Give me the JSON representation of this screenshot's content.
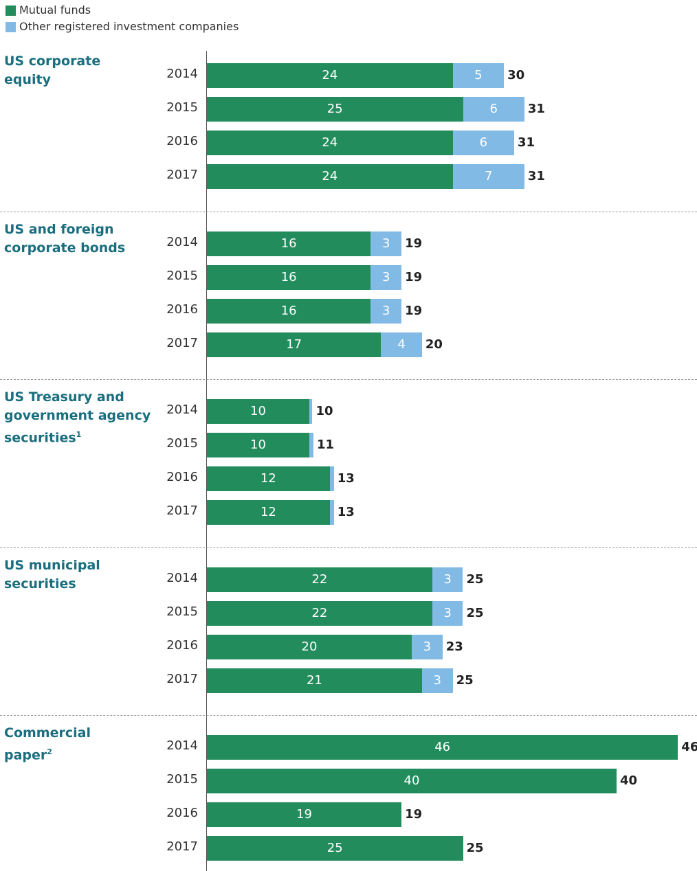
{
  "chart_data": {
    "type": "bar",
    "series": [
      {
        "name": "Mutual funds",
        "color": "#238c5c"
      },
      {
        "name": "Other registered investment companies",
        "color": "#82bae6"
      }
    ],
    "groups": [
      {
        "name": [
          "US corporate",
          "equity"
        ],
        "categories": [
          "2014",
          "2015",
          "2016",
          "2017"
        ],
        "values": [
          [
            24,
            25,
            24,
            24
          ],
          [
            5,
            6,
            6,
            7
          ]
        ],
        "totals": [
          30,
          31,
          31,
          31
        ]
      },
      {
        "name": [
          "US and foreign",
          "corporate bonds"
        ],
        "categories": [
          "2014",
          "2015",
          "2016",
          "2017"
        ],
        "values": [
          [
            16,
            16,
            16,
            17
          ],
          [
            3,
            3,
            3,
            4
          ]
        ],
        "totals": [
          19,
          19,
          19,
          20
        ]
      },
      {
        "name": [
          "US Treasury and",
          "government agency",
          "securities"
        ],
        "footnote": "1",
        "categories": [
          "2014",
          "2015",
          "2016",
          "2017"
        ],
        "values": [
          [
            10,
            10,
            12,
            12
          ],
          [
            0.3,
            0.4,
            0.4,
            0.4
          ]
        ],
        "totals": [
          10,
          11,
          13,
          13
        ]
      },
      {
        "name": [
          "US municipal",
          "securities"
        ],
        "categories": [
          "2014",
          "2015",
          "2016",
          "2017"
        ],
        "values": [
          [
            22,
            22,
            20,
            21
          ],
          [
            3,
            3,
            3,
            3
          ]
        ],
        "totals": [
          25,
          25,
          23,
          25
        ]
      },
      {
        "name": [
          "Commercial",
          "paper"
        ],
        "footnote": "2",
        "categories": [
          "2014",
          "2015",
          "2016",
          "2017"
        ],
        "values": [
          [
            46,
            40,
            19,
            25
          ],
          [
            0,
            0,
            0,
            0
          ]
        ],
        "totals": [
          46,
          40,
          19,
          25
        ]
      }
    ]
  }
}
